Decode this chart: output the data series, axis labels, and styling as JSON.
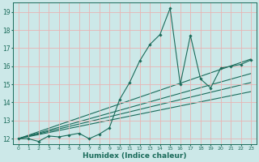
{
  "xlabel": "Humidex (Indice chaleur)",
  "bg_color": "#cce8e8",
  "grid_color": "#e8b4b4",
  "line_color": "#1a6b5a",
  "xlim": [
    -0.5,
    23.5
  ],
  "ylim": [
    11.7,
    19.5
  ],
  "xticks": [
    0,
    1,
    2,
    3,
    4,
    5,
    6,
    7,
    8,
    9,
    10,
    11,
    12,
    13,
    14,
    15,
    16,
    17,
    18,
    19,
    20,
    21,
    22,
    23
  ],
  "yticks": [
    12,
    13,
    14,
    15,
    16,
    17,
    18,
    19
  ],
  "main_x": [
    0,
    1,
    2,
    3,
    4,
    5,
    6,
    7,
    8,
    9,
    10,
    11,
    12,
    13,
    14,
    15,
    16,
    17,
    18,
    19,
    20,
    21,
    22,
    23
  ],
  "main_y": [
    12.0,
    12.0,
    11.85,
    12.15,
    12.1,
    12.2,
    12.3,
    12.0,
    12.25,
    12.6,
    14.15,
    15.1,
    16.3,
    17.2,
    17.75,
    19.2,
    15.0,
    17.7,
    15.3,
    14.8,
    15.9,
    16.0,
    16.1,
    16.35
  ],
  "trend_lines": [
    {
      "x": [
        0,
        23
      ],
      "y": [
        12.0,
        16.4
      ]
    },
    {
      "x": [
        0,
        23
      ],
      "y": [
        12.0,
        15.6
      ]
    },
    {
      "x": [
        0,
        23
      ],
      "y": [
        12.0,
        15.1
      ]
    },
    {
      "x": [
        0,
        23
      ],
      "y": [
        12.0,
        14.6
      ]
    }
  ]
}
